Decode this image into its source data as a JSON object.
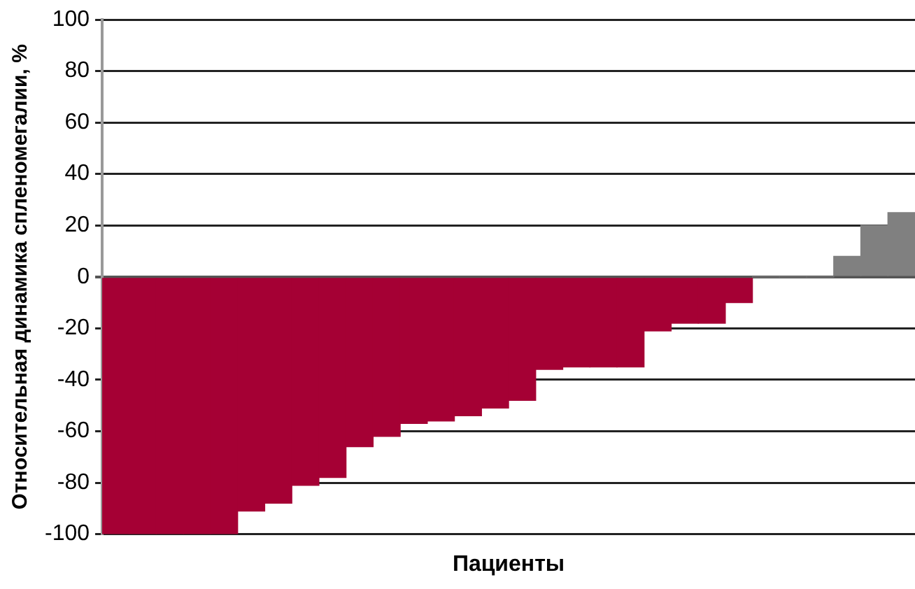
{
  "chart_data": {
    "type": "bar",
    "xlabel": "Пациенты",
    "ylabel": "Относительная динамика спленомегалии, %",
    "categories": [
      null,
      null,
      null,
      null,
      null,
      null,
      null,
      null,
      null,
      null,
      null,
      null,
      null,
      null,
      null,
      null,
      null,
      null,
      null,
      null,
      null,
      null,
      null,
      null,
      null,
      null,
      null,
      null,
      null,
      null
    ],
    "values": [
      -100,
      -100,
      -100,
      -100,
      -100,
      -91,
      -88,
      -81,
      -78,
      -66,
      -62,
      -57,
      -56,
      -54,
      -51,
      -48,
      -36,
      -35,
      -35,
      -35,
      -21,
      -18,
      -18,
      -10,
      0,
      0,
      0,
      8,
      20,
      25
    ],
    "colors": [
      "#a50034",
      "#a50034",
      "#a50034",
      "#a50034",
      "#a50034",
      "#a50034",
      "#a50034",
      "#a50034",
      "#a50034",
      "#a50034",
      "#a50034",
      "#a50034",
      "#a50034",
      "#a50034",
      "#a50034",
      "#a50034",
      "#a50034",
      "#a50034",
      "#a50034",
      "#a50034",
      "#a50034",
      "#a50034",
      "#a50034",
      "#a50034",
      "#808080",
      "#808080",
      "#808080",
      "#808080",
      "#808080",
      "#808080"
    ],
    "ylim": [
      -100,
      100
    ],
    "yticks": [
      -100,
      -80,
      -60,
      -40,
      -20,
      0,
      20,
      40,
      60,
      80,
      100
    ],
    "grid": "y",
    "tick_labels": "y"
  }
}
